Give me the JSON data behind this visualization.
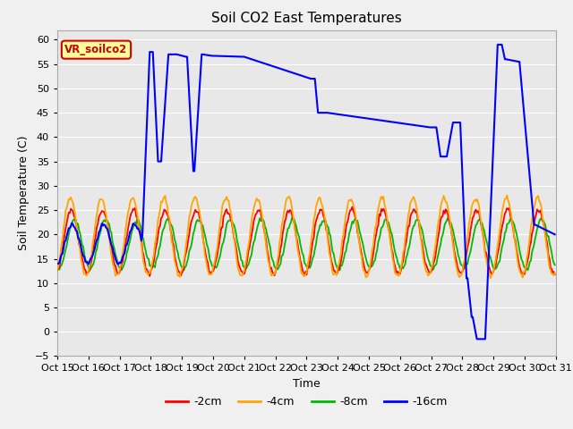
{
  "title": "Soil CO2 East Temperatures",
  "xlabel": "Time",
  "ylabel": "Soil Temperature (C)",
  "ylim": [
    -5,
    62
  ],
  "colors": {
    "2cm": "#ff0000",
    "4cm": "#ffa500",
    "8cm": "#00bb00",
    "16cm": "#0000ff"
  },
  "legend_labels": [
    "-2cm",
    "-4cm",
    "-8cm",
    "-16cm"
  ],
  "annotation_label": "VR_soilco2",
  "annotation_color": "#cc0000",
  "annotation_bg": "#ffff99",
  "xtick_labels": [
    "Oct 15",
    "Oct 16",
    "Oct 17",
    "Oct 18",
    "Oct 19",
    "Oct 20",
    "Oct 21",
    "Oct 22",
    "Oct 23",
    "Oct 24",
    "Oct 25",
    "Oct 26",
    "Oct 27",
    "Oct 28",
    "Oct 29",
    "Oct 30",
    "Oct 31"
  ],
  "ytick_vals": [
    -5,
    0,
    5,
    10,
    15,
    20,
    25,
    30,
    35,
    40,
    45,
    50,
    55,
    60
  ],
  "fig_bg": "#f0f0f0",
  "ax_bg": "#e8e8e8",
  "grid_color": "#ffffff"
}
